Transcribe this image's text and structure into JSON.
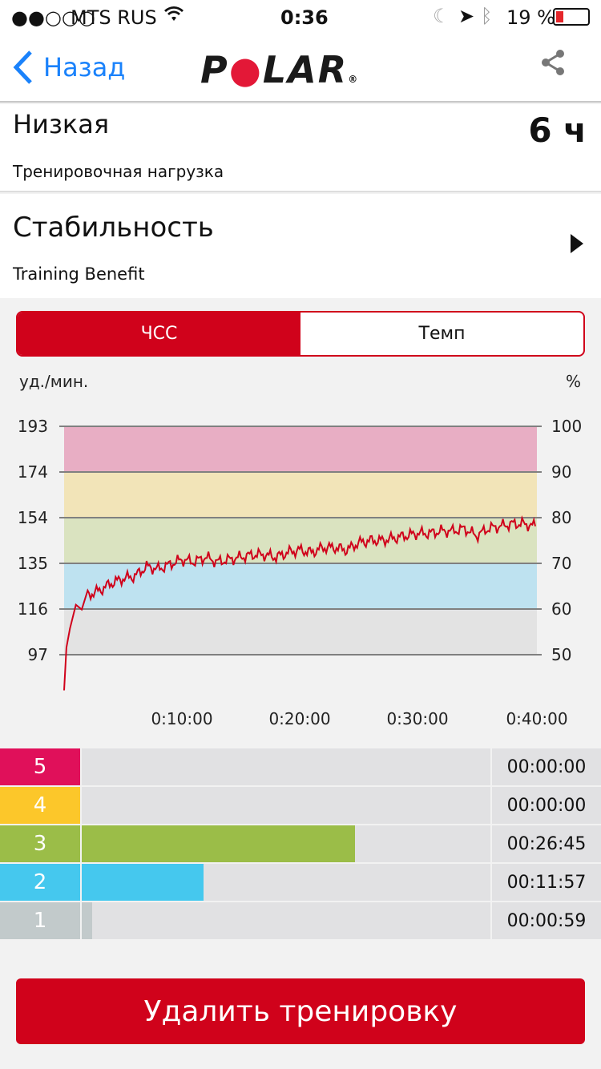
{
  "status": {
    "carrier": "MTS RUS",
    "time": "0:36",
    "battery": "19 %"
  },
  "nav": {
    "back": "Назад",
    "logo": "POLAR"
  },
  "load": {
    "title": "Низкая",
    "subtitle": "Тренировочная нагрузка",
    "value": "6 ч"
  },
  "benefit": {
    "title": "Стабильность",
    "subtitle": "Training Benefit"
  },
  "tabs": [
    {
      "label": "ЧСС",
      "active": true
    },
    {
      "label": "Темп",
      "active": false
    }
  ],
  "chart_data": {
    "type": "line",
    "ylabel": "уд./мин.",
    "y2label": "%",
    "yticks": [
      "193",
      "174",
      "154",
      "135",
      "116",
      "97"
    ],
    "y2ticks": [
      "100",
      "90",
      "80",
      "70",
      "60",
      "50"
    ],
    "ylim": [
      97,
      193
    ],
    "xlim": [
      0,
      40
    ],
    "xticks": [
      "0:10:00",
      "0:20:00",
      "0:30:00",
      "0:40:00"
    ],
    "zones": [
      {
        "from": 173.8,
        "to": 193,
        "color": "#e8aec4"
      },
      {
        "from": 154.4,
        "to": 173.8,
        "color": "#f2e4b8"
      },
      {
        "from": 135.1,
        "to": 154.4,
        "color": "#dae3c0"
      },
      {
        "from": 115.8,
        "to": 135.1,
        "color": "#bee2f0"
      },
      {
        "from": 97,
        "to": 115.8,
        "color": "#e3e3e3"
      }
    ],
    "series": [
      {
        "name": "HR",
        "color": "#d0021b",
        "x": [
          0,
          0.2,
          0.5,
          1,
          1.5,
          2,
          3,
          4,
          5,
          6,
          7,
          8,
          9,
          10,
          11,
          12,
          13,
          14,
          15,
          16,
          17,
          18,
          19,
          20,
          21,
          22,
          23,
          24,
          25,
          26,
          27,
          28,
          29,
          30,
          31,
          32,
          33,
          34,
          35,
          36,
          37,
          38,
          39,
          40
        ],
        "values": [
          82,
          100,
          108,
          118,
          118,
          122,
          124,
          127,
          129,
          130,
          134,
          133,
          135,
          137,
          136,
          138,
          136,
          137,
          138,
          139,
          139,
          138,
          140,
          141,
          140,
          142,
          142,
          141,
          144,
          145,
          145,
          146,
          147,
          148,
          148,
          149,
          149,
          150,
          147,
          150,
          151,
          152,
          152,
          151
        ]
      }
    ]
  },
  "zones": [
    {
      "n": "5",
      "time": "00:00:00",
      "fraction": 0,
      "color": "#e0105a"
    },
    {
      "n": "4",
      "time": "00:00:00",
      "fraction": 0,
      "color": "#fcc72a"
    },
    {
      "n": "3",
      "time": "00:26:45",
      "fraction": 0.669,
      "color": "#9bbd48"
    },
    {
      "n": "2",
      "time": "00:11:57",
      "fraction": 0.299,
      "color": "#45c8ee"
    },
    {
      "n": "1",
      "time": "00:00:59",
      "fraction": 0.025,
      "color": "#c2cacb"
    }
  ],
  "delete_label": "Удалить тренировку"
}
